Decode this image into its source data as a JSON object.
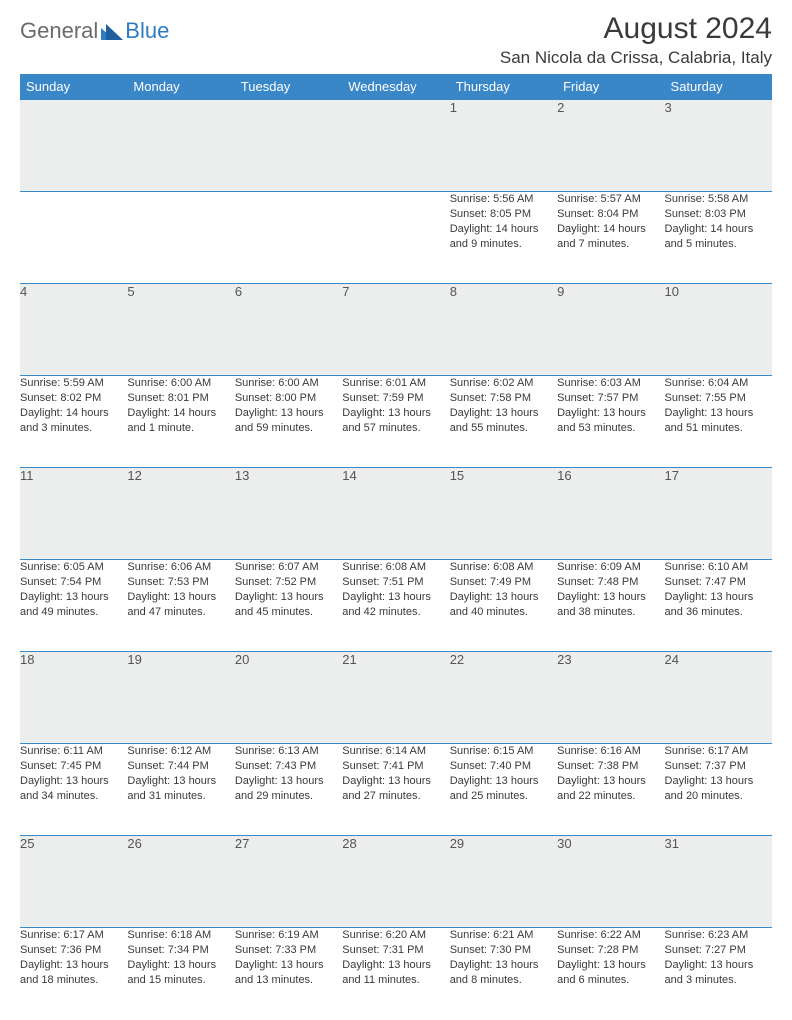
{
  "header": {
    "logo_general": "General",
    "logo_blue": "Blue",
    "month_title": "August 2024",
    "location": "San Nicola da Crissa, Calabria, Italy"
  },
  "colors": {
    "header_bg": "#3a87c8",
    "header_text": "#ffffff",
    "daynum_bg": "#eceded",
    "border": "#3a87c8",
    "text": "#3a3a3a",
    "logo_gray": "#6b6b6b",
    "logo_blue": "#2f7bc4"
  },
  "weekdays": [
    "Sunday",
    "Monday",
    "Tuesday",
    "Wednesday",
    "Thursday",
    "Friday",
    "Saturday"
  ],
  "weeks": [
    [
      {
        "day": "",
        "sunrise": "",
        "sunset": "",
        "daylight": ""
      },
      {
        "day": "",
        "sunrise": "",
        "sunset": "",
        "daylight": ""
      },
      {
        "day": "",
        "sunrise": "",
        "sunset": "",
        "daylight": ""
      },
      {
        "day": "",
        "sunrise": "",
        "sunset": "",
        "daylight": ""
      },
      {
        "day": "1",
        "sunrise": "Sunrise: 5:56 AM",
        "sunset": "Sunset: 8:05 PM",
        "daylight": "Daylight: 14 hours and 9 minutes."
      },
      {
        "day": "2",
        "sunrise": "Sunrise: 5:57 AM",
        "sunset": "Sunset: 8:04 PM",
        "daylight": "Daylight: 14 hours and 7 minutes."
      },
      {
        "day": "3",
        "sunrise": "Sunrise: 5:58 AM",
        "sunset": "Sunset: 8:03 PM",
        "daylight": "Daylight: 14 hours and 5 minutes."
      }
    ],
    [
      {
        "day": "4",
        "sunrise": "Sunrise: 5:59 AM",
        "sunset": "Sunset: 8:02 PM",
        "daylight": "Daylight: 14 hours and 3 minutes."
      },
      {
        "day": "5",
        "sunrise": "Sunrise: 6:00 AM",
        "sunset": "Sunset: 8:01 PM",
        "daylight": "Daylight: 14 hours and 1 minute."
      },
      {
        "day": "6",
        "sunrise": "Sunrise: 6:00 AM",
        "sunset": "Sunset: 8:00 PM",
        "daylight": "Daylight: 13 hours and 59 minutes."
      },
      {
        "day": "7",
        "sunrise": "Sunrise: 6:01 AM",
        "sunset": "Sunset: 7:59 PM",
        "daylight": "Daylight: 13 hours and 57 minutes."
      },
      {
        "day": "8",
        "sunrise": "Sunrise: 6:02 AM",
        "sunset": "Sunset: 7:58 PM",
        "daylight": "Daylight: 13 hours and 55 minutes."
      },
      {
        "day": "9",
        "sunrise": "Sunrise: 6:03 AM",
        "sunset": "Sunset: 7:57 PM",
        "daylight": "Daylight: 13 hours and 53 minutes."
      },
      {
        "day": "10",
        "sunrise": "Sunrise: 6:04 AM",
        "sunset": "Sunset: 7:55 PM",
        "daylight": "Daylight: 13 hours and 51 minutes."
      }
    ],
    [
      {
        "day": "11",
        "sunrise": "Sunrise: 6:05 AM",
        "sunset": "Sunset: 7:54 PM",
        "daylight": "Daylight: 13 hours and 49 minutes."
      },
      {
        "day": "12",
        "sunrise": "Sunrise: 6:06 AM",
        "sunset": "Sunset: 7:53 PM",
        "daylight": "Daylight: 13 hours and 47 minutes."
      },
      {
        "day": "13",
        "sunrise": "Sunrise: 6:07 AM",
        "sunset": "Sunset: 7:52 PM",
        "daylight": "Daylight: 13 hours and 45 minutes."
      },
      {
        "day": "14",
        "sunrise": "Sunrise: 6:08 AM",
        "sunset": "Sunset: 7:51 PM",
        "daylight": "Daylight: 13 hours and 42 minutes."
      },
      {
        "day": "15",
        "sunrise": "Sunrise: 6:08 AM",
        "sunset": "Sunset: 7:49 PM",
        "daylight": "Daylight: 13 hours and 40 minutes."
      },
      {
        "day": "16",
        "sunrise": "Sunrise: 6:09 AM",
        "sunset": "Sunset: 7:48 PM",
        "daylight": "Daylight: 13 hours and 38 minutes."
      },
      {
        "day": "17",
        "sunrise": "Sunrise: 6:10 AM",
        "sunset": "Sunset: 7:47 PM",
        "daylight": "Daylight: 13 hours and 36 minutes."
      }
    ],
    [
      {
        "day": "18",
        "sunrise": "Sunrise: 6:11 AM",
        "sunset": "Sunset: 7:45 PM",
        "daylight": "Daylight: 13 hours and 34 minutes."
      },
      {
        "day": "19",
        "sunrise": "Sunrise: 6:12 AM",
        "sunset": "Sunset: 7:44 PM",
        "daylight": "Daylight: 13 hours and 31 minutes."
      },
      {
        "day": "20",
        "sunrise": "Sunrise: 6:13 AM",
        "sunset": "Sunset: 7:43 PM",
        "daylight": "Daylight: 13 hours and 29 minutes."
      },
      {
        "day": "21",
        "sunrise": "Sunrise: 6:14 AM",
        "sunset": "Sunset: 7:41 PM",
        "daylight": "Daylight: 13 hours and 27 minutes."
      },
      {
        "day": "22",
        "sunrise": "Sunrise: 6:15 AM",
        "sunset": "Sunset: 7:40 PM",
        "daylight": "Daylight: 13 hours and 25 minutes."
      },
      {
        "day": "23",
        "sunrise": "Sunrise: 6:16 AM",
        "sunset": "Sunset: 7:38 PM",
        "daylight": "Daylight: 13 hours and 22 minutes."
      },
      {
        "day": "24",
        "sunrise": "Sunrise: 6:17 AM",
        "sunset": "Sunset: 7:37 PM",
        "daylight": "Daylight: 13 hours and 20 minutes."
      }
    ],
    [
      {
        "day": "25",
        "sunrise": "Sunrise: 6:17 AM",
        "sunset": "Sunset: 7:36 PM",
        "daylight": "Daylight: 13 hours and 18 minutes."
      },
      {
        "day": "26",
        "sunrise": "Sunrise: 6:18 AM",
        "sunset": "Sunset: 7:34 PM",
        "daylight": "Daylight: 13 hours and 15 minutes."
      },
      {
        "day": "27",
        "sunrise": "Sunrise: 6:19 AM",
        "sunset": "Sunset: 7:33 PM",
        "daylight": "Daylight: 13 hours and 13 minutes."
      },
      {
        "day": "28",
        "sunrise": "Sunrise: 6:20 AM",
        "sunset": "Sunset: 7:31 PM",
        "daylight": "Daylight: 13 hours and 11 minutes."
      },
      {
        "day": "29",
        "sunrise": "Sunrise: 6:21 AM",
        "sunset": "Sunset: 7:30 PM",
        "daylight": "Daylight: 13 hours and 8 minutes."
      },
      {
        "day": "30",
        "sunrise": "Sunrise: 6:22 AM",
        "sunset": "Sunset: 7:28 PM",
        "daylight": "Daylight: 13 hours and 6 minutes."
      },
      {
        "day": "31",
        "sunrise": "Sunrise: 6:23 AM",
        "sunset": "Sunset: 7:27 PM",
        "daylight": "Daylight: 13 hours and 3 minutes."
      }
    ]
  ]
}
